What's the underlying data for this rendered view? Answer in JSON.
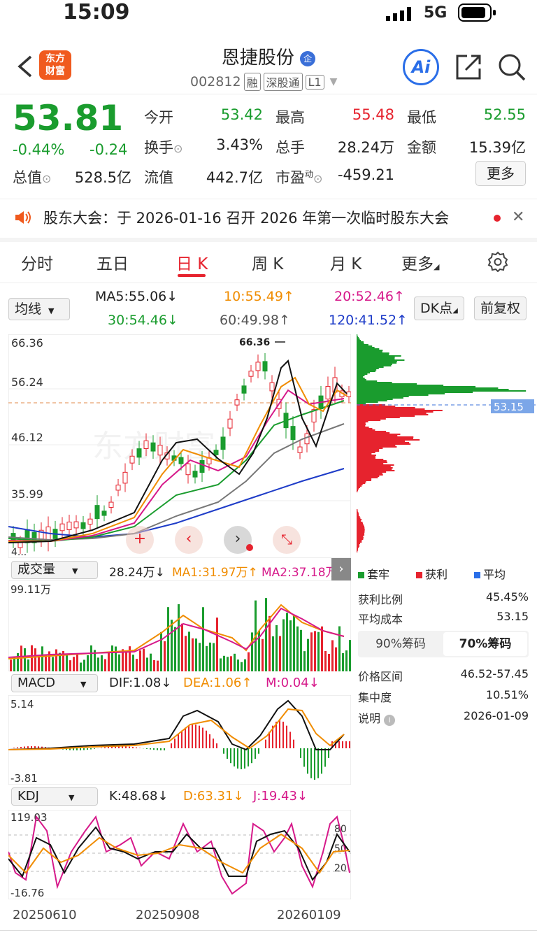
{
  "status": {
    "time": "15:09",
    "network": "5G"
  },
  "header": {
    "logo_text_1": "东方",
    "logo_text_2": "财富",
    "stock_name": "恩捷股份",
    "badge": "企",
    "code": "002812",
    "tags": [
      "融",
      "深股通",
      "L1"
    ],
    "ai_label": "Ai"
  },
  "quote": {
    "price": "53.81",
    "change_pct": "-0.44%",
    "change": "-0.24",
    "total_value_label": "总值",
    "total_value": "528.5亿",
    "open_label": "今开",
    "open": "53.42",
    "high_label": "最高",
    "high": "55.48",
    "low_label": "最低",
    "low": "52.55",
    "turnover_label": "换手",
    "turnover": "3.43%",
    "volume_label": "总手",
    "volume": "28.24万",
    "amount_label": "金额",
    "amount": "15.39亿",
    "float_label": "流值",
    "float_value": "442.7亿",
    "pe_label": "市盈",
    "pe_sup": "动",
    "pe": "-459.21",
    "more_label": "更多"
  },
  "notice": {
    "text": "股东大会：于 2026-01-16 召开 2026 年第一次临时股东大会"
  },
  "tabs": [
    "分时",
    "五日",
    "日 K",
    "周 K",
    "月 K",
    "更多"
  ],
  "active_tab": 2,
  "ma_controls": {
    "ma_select": "均线",
    "dk_label": "DK点",
    "fq_label": "前复权",
    "ma5": "MA5:55.06↓",
    "ma10": "10:55.49↑",
    "ma20": "20:52.46↑",
    "ma30": "30:54.46↓",
    "ma60": "60:49.98↑",
    "ma120": "120:41.52↑"
  },
  "kline": {
    "y_labels": [
      "66.36",
      "56.24",
      "46.12",
      "35.99",
      "4..."
    ],
    "max_marker": "66.36",
    "cost_line": "53.15",
    "watermark": "东方财富"
  },
  "volume_panel": {
    "select": "成交量",
    "vol": "28.24万↓",
    "ma1": "MA1:31.97万↑",
    "ma2": "MA2:37.18万↑",
    "y_max": "99.11万"
  },
  "macd_panel": {
    "select": "MACD",
    "dif": "DIF:1.08↓",
    "dea": "DEA:1.06↑",
    "m": "M:0.04↓",
    "y_max": "5.14",
    "y_min": "-3.81"
  },
  "kdj_panel": {
    "select": "KDJ",
    "k": "K:48.68↓",
    "d": "D:63.31↓",
    "j": "J:19.43↓",
    "y_max": "119.03",
    "y_min": "-16.76",
    "levels": [
      "80",
      "50",
      "20"
    ]
  },
  "dates": [
    "20250610",
    "20250908",
    "20260109"
  ],
  "chips": {
    "legend": [
      "套牢",
      "获利",
      "平均"
    ],
    "rows": [
      {
        "label": "获利比例",
        "value": "45.45%"
      },
      {
        "label": "平均成本",
        "value": "53.15"
      }
    ],
    "tab_90": "90%筹码",
    "tab_70": "70%筹码",
    "rows2": [
      {
        "label": "价格区间",
        "value": "46.52-57.45"
      },
      {
        "label": "集中度",
        "value": "10.51%"
      },
      {
        "label": "说明",
        "value": "2026-01-09"
      }
    ]
  },
  "colors": {
    "up": "#e6232e",
    "down": "#1a9c2e",
    "ma10": "#f08c00",
    "ma20": "#d6198a",
    "ma120": "#1e3cc8"
  }
}
